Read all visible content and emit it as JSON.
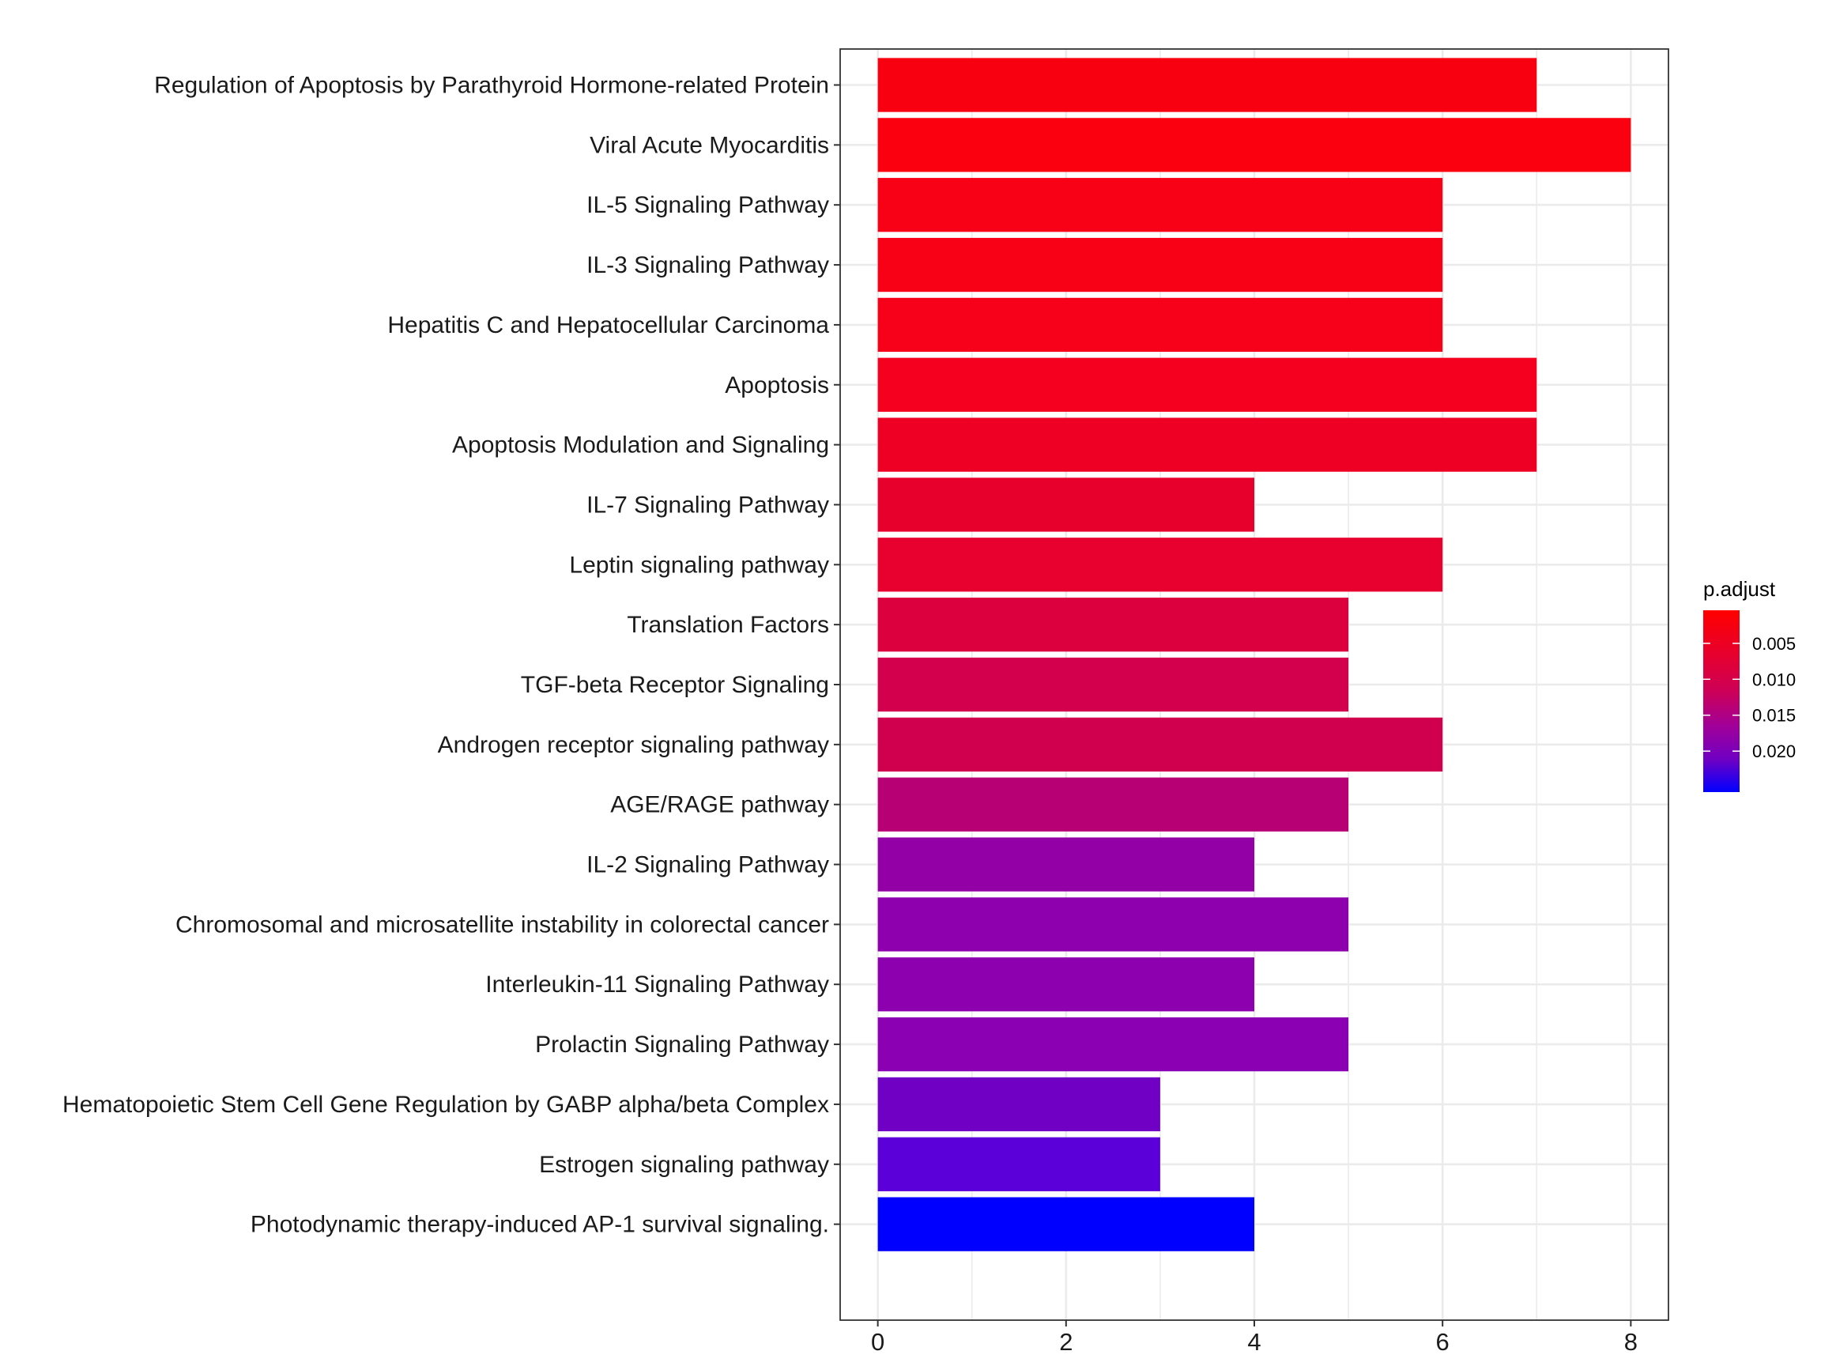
{
  "chart_data": {
    "type": "bar",
    "orientation": "horizontal",
    "title": "",
    "xlabel": "",
    "ylabel": "",
    "xlim": [
      -0.4,
      8.4
    ],
    "x_ticks": [
      0,
      2,
      4,
      6,
      8
    ],
    "x_tick_labels": [
      "0",
      "2",
      "4",
      "6",
      "8"
    ],
    "grid": true,
    "categories": [
      "Regulation of Apoptosis by Parathyroid Hormone-related Protein",
      "Viral Acute Myocarditis",
      "IL-5 Signaling Pathway",
      "IL-3 Signaling Pathway",
      "Hepatitis C and Hepatocellular Carcinoma",
      "Apoptosis",
      "Apoptosis Modulation and Signaling",
      "IL-7 Signaling Pathway",
      "Leptin signaling pathway",
      "Translation Factors",
      "TGF-beta Receptor Signaling",
      "Androgen receptor signaling pathway",
      "AGE/RAGE pathway",
      "IL-2 Signaling Pathway",
      "Chromosomal and microsatellite instability in colorectal cancer ",
      "Interleukin-11 Signaling Pathway",
      "Prolactin Signaling Pathway",
      "Hematopoietic Stem Cell Gene Regulation by GABP alpha/beta Complex",
      "Estrogen signaling pathway",
      "Photodynamic therapy-induced AP-1 survival signaling."
    ],
    "values": [
      7,
      8,
      6,
      6,
      6,
      7,
      7,
      4,
      6,
      5,
      5,
      6,
      5,
      4,
      5,
      4,
      5,
      3,
      3,
      4
    ],
    "color_variable": "p.adjust",
    "p_adjust": [
      0.001,
      0.0008,
      0.0015,
      0.0015,
      0.0018,
      0.0022,
      0.0032,
      0.0045,
      0.0046,
      0.0068,
      0.0086,
      0.0088,
      0.0125,
      0.0162,
      0.0168,
      0.017,
      0.0172,
      0.02,
      0.0218,
      0.0255
    ],
    "bar_colors": [
      "#F90011",
      "#FB000E",
      "#F80016",
      "#F80016",
      "#F7001A",
      "#F5001E",
      "#EE0025",
      "#E8002D",
      "#E8002F",
      "#DD003F",
      "#D3004D",
      "#D1004E",
      "#B60073",
      "#9300A5",
      "#8E00AE",
      "#8C00AF",
      "#8A00B2",
      "#7000C3",
      "#5B00D8",
      "#0000FF"
    ],
    "legend": {
      "title": "p.adjust",
      "position": "right",
      "type": "colorbar",
      "range": [
        0.0004,
        0.0257
      ],
      "ticks": [
        0.005,
        0.01,
        0.015,
        0.02
      ],
      "tick_labels": [
        "0.005",
        "0.010",
        "0.015",
        "0.020"
      ],
      "low_color": "#FF0000",
      "high_color": "#0000FF"
    }
  }
}
